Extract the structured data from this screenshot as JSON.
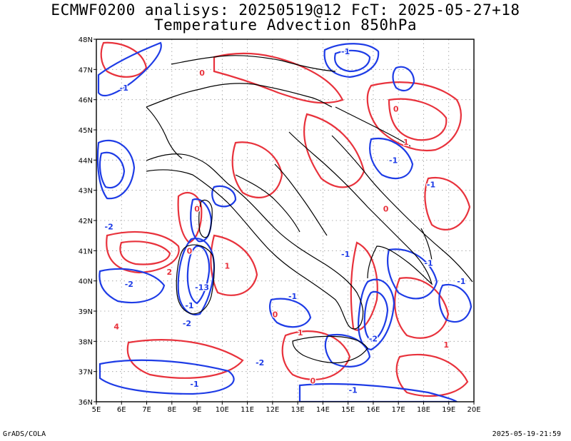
{
  "header": {
    "line1": "ECMWF0200 analisys: 20250519@12 FcT: 2025-05-27+18",
    "line2": "Temperature Advection 850hPa"
  },
  "map": {
    "lon_labels": [
      "5E",
      "6E",
      "7E",
      "8E",
      "9E",
      "10E",
      "11E",
      "12E",
      "13E",
      "14E",
      "15E",
      "16E",
      "17E",
      "18E",
      "19E",
      "20E"
    ],
    "lat_labels": [
      "36N",
      "37N",
      "38N",
      "39N",
      "40N",
      "41N",
      "42N",
      "43N",
      "44N",
      "45N",
      "46N",
      "47N",
      "48N"
    ],
    "lon_range": [
      5,
      20
    ],
    "lat_range": [
      36,
      48
    ],
    "colors": {
      "warm_advection": "#e8323c",
      "cold_advection": "#1e3ce6",
      "coastline": "#000000",
      "grid": "#9a9a9a"
    },
    "contour_labels": [
      {
        "text": "-1",
        "lon": 14.9,
        "lat": 47.5,
        "type": "cold"
      },
      {
        "text": "-1",
        "lon": 6.1,
        "lat": 46.3,
        "type": "cold"
      },
      {
        "text": "-1",
        "lon": 16.8,
        "lat": 43.9,
        "type": "cold"
      },
      {
        "text": "-1",
        "lon": 18.3,
        "lat": 43.1,
        "type": "cold"
      },
      {
        "text": "-2",
        "lon": 5.5,
        "lat": 41.7,
        "type": "cold"
      },
      {
        "text": "-2",
        "lon": 8.6,
        "lat": 38.5,
        "type": "cold"
      },
      {
        "text": "-1",
        "lon": 8.7,
        "lat": 39.1,
        "type": "cold"
      },
      {
        "text": "-13",
        "lon": 9.2,
        "lat": 39.7,
        "type": "cold"
      },
      {
        "text": "-2",
        "lon": 6.3,
        "lat": 39.8,
        "type": "cold"
      },
      {
        "text": "-1",
        "lon": 14.9,
        "lat": 40.8,
        "type": "cold"
      },
      {
        "text": "-1",
        "lon": 12.8,
        "lat": 39.4,
        "type": "cold"
      },
      {
        "text": "-2",
        "lon": 16.0,
        "lat": 38.0,
        "type": "cold"
      },
      {
        "text": "-2",
        "lon": 11.5,
        "lat": 37.2,
        "type": "cold"
      },
      {
        "text": "-1",
        "lon": 15.2,
        "lat": 36.3,
        "type": "cold"
      },
      {
        "text": "-1",
        "lon": 8.9,
        "lat": 36.5,
        "type": "cold"
      },
      {
        "text": "-1",
        "lon": 19.5,
        "lat": 39.9,
        "type": "cold"
      },
      {
        "text": "-1",
        "lon": 18.2,
        "lat": 40.5,
        "type": "cold"
      },
      {
        "text": "0",
        "lon": 9.2,
        "lat": 46.8,
        "type": "warm"
      },
      {
        "text": "0",
        "lon": 9.0,
        "lat": 42.3,
        "type": "warm"
      },
      {
        "text": "0",
        "lon": 8.7,
        "lat": 40.9,
        "type": "warm"
      },
      {
        "text": "0",
        "lon": 12.1,
        "lat": 38.8,
        "type": "warm"
      },
      {
        "text": "0",
        "lon": 13.6,
        "lat": 36.6,
        "type": "warm"
      },
      {
        "text": "0",
        "lon": 16.5,
        "lat": 42.3,
        "type": "warm"
      },
      {
        "text": "1",
        "lon": 10.2,
        "lat": 40.4,
        "type": "warm"
      },
      {
        "text": "1",
        "lon": 13.1,
        "lat": 38.2,
        "type": "warm"
      },
      {
        "text": "1",
        "lon": 18.9,
        "lat": 37.8,
        "type": "warm"
      },
      {
        "text": "2",
        "lon": 7.9,
        "lat": 40.2,
        "type": "warm"
      },
      {
        "text": "4",
        "lon": 5.8,
        "lat": 38.4,
        "type": "warm"
      },
      {
        "text": "1",
        "lon": 17.3,
        "lat": 44.5,
        "type": "warm"
      },
      {
        "text": "0",
        "lon": 16.9,
        "lat": 45.6,
        "type": "warm"
      }
    ]
  },
  "footer": {
    "left": "GrADS/COLA",
    "right": "2025-05-19-21:59"
  }
}
